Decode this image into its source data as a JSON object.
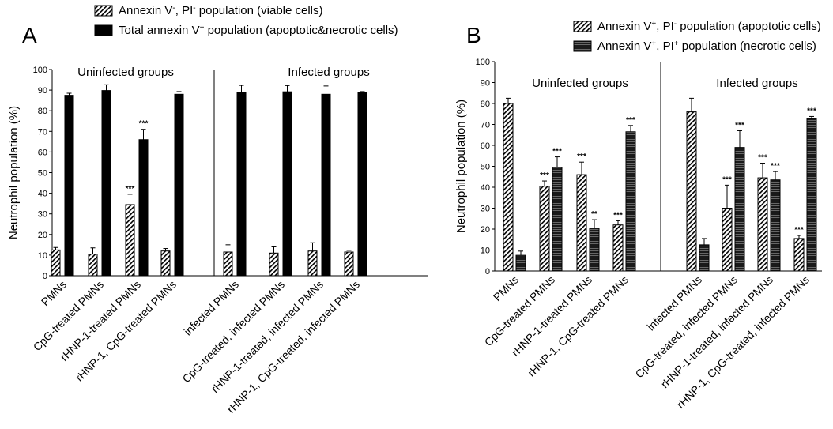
{
  "colors": {
    "viable": "#ffffff",
    "total": "#000000",
    "apoptotic": "#ffffff",
    "necrotic": "#1a1a1a",
    "axis": "#000000"
  },
  "chart_data": [
    {
      "type": "bar",
      "panel": "A",
      "ylabel": "Neutrophil population (%)",
      "ylim": [
        0,
        100
      ],
      "yticks": [
        0,
        10,
        20,
        30,
        40,
        50,
        60,
        70,
        80,
        90,
        100
      ],
      "legend": [
        {
          "name": "Annexin V",
          "sup": "-",
          "rest": ", PI",
          "sup2": "-",
          "tail": " population (viable cells)",
          "pattern": "diagonal-hatch"
        },
        {
          "name": "Total annexin V",
          "sup": "+",
          "rest": " population (apoptotic&necrotic cells)",
          "sup2": "",
          "tail": "",
          "pattern": "solid-black"
        }
      ],
      "groups": [
        "Uninfected groups",
        "Infected groups"
      ],
      "categories": [
        "PMNs",
        "CpG-treated PMNs",
        "rHNP-1-treated PMNs",
        "rHNP-1, CpG-treated PMNs",
        "infected PMNs",
        "CpG-treated, infected PMNs",
        "rHNP-1-treated, infected PMNs",
        "rHNP-1, CpG-treated, infected PMNs"
      ],
      "series": [
        {
          "name": "Annexin V-, PI- population (viable cells)",
          "values": [
            12.5,
            10.5,
            34.5,
            12,
            11.5,
            11,
            12,
            11.5
          ],
          "errors": [
            1.2,
            3,
            5,
            1.2,
            3.5,
            3,
            4,
            0.8
          ],
          "sig": [
            "",
            "",
            "***",
            "",
            "",
            "",
            "",
            ""
          ]
        },
        {
          "name": "Total annexin V+ population (apoptotic&necrotic cells)",
          "values": [
            87.5,
            89.8,
            66,
            88,
            88.8,
            89.2,
            88,
            88.7
          ],
          "errors": [
            1,
            2.8,
            5,
            1.3,
            3.5,
            3,
            4,
            0.6
          ],
          "sig": [
            "",
            "",
            "***",
            "",
            "",
            "",
            "",
            ""
          ]
        }
      ]
    },
    {
      "type": "bar",
      "panel": "B",
      "ylabel": "Neutrophil population (%)",
      "ylim": [
        0,
        100
      ],
      "yticks": [
        0,
        10,
        20,
        30,
        40,
        50,
        60,
        70,
        80,
        90,
        100
      ],
      "legend": [
        {
          "name": "Annexin V",
          "sup": "+",
          "rest": ", PI",
          "sup2": "-",
          "tail": " population (apoptotic cells)",
          "pattern": "diagonal-hatch"
        },
        {
          "name": "Annexin V",
          "sup": "+",
          "rest": ", PI",
          "sup2": "+",
          "tail": " population (necrotic cells)",
          "pattern": "horizontal-stripes"
        }
      ],
      "groups": [
        "Uninfected groups",
        "Infected groups"
      ],
      "categories": [
        "PMNs",
        "CpG-treated PMNs",
        "rHNP-1-treated PMNs",
        "rHNP-1, CpG-treated PMNs",
        "infected PMNs",
        "CpG-treated, infected PMNs",
        "rHNP-1-treated, infected PMNs",
        "rHNP-1, CpG-treated, infected PMNs"
      ],
      "series": [
        {
          "name": "Annexin V+, PI- population (apoptotic cells)",
          "values": [
            80,
            40.5,
            46,
            22,
            76,
            30,
            44.5,
            15.5
          ],
          "errors": [
            2.5,
            2.5,
            6,
            2,
            6.5,
            11,
            7,
            1.5
          ],
          "sig": [
            "",
            "***",
            "***",
            "***",
            "",
            "***",
            "***",
            "***"
          ]
        },
        {
          "name": "Annexin V+, PI+ population (necrotic cells)",
          "values": [
            7.5,
            49.5,
            20.5,
            66.5,
            12.5,
            59,
            43.5,
            73
          ],
          "errors": [
            2,
            5,
            4,
            3,
            3,
            8,
            4,
            0.8
          ],
          "sig": [
            "",
            "***",
            "**",
            "***",
            "",
            "***",
            "***",
            "***"
          ]
        }
      ]
    }
  ]
}
